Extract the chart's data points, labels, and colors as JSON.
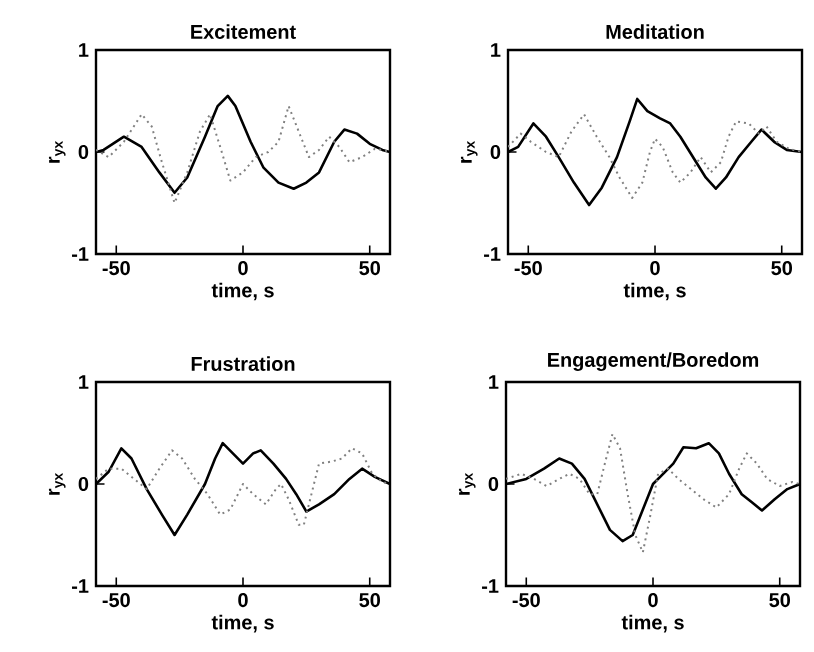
{
  "chart_data": [
    {
      "type": "line",
      "title": "Excitement",
      "xlabel": "time, s",
      "ylabel": "r$_{yx}$",
      "xlim": [
        -58,
        58
      ],
      "ylim": [
        -1,
        1
      ],
      "xticks": [
        -50,
        0,
        50
      ],
      "yticks": [
        -1,
        0,
        1
      ],
      "series": [
        {
          "color": "#000000",
          "line_style": "solid",
          "x": [
            -58,
            -55,
            -47,
            -40,
            -33,
            -27,
            -22,
            -15,
            -10,
            -6,
            -3,
            3,
            8,
            14,
            20,
            25,
            30,
            36,
            40,
            45,
            50,
            55,
            58
          ],
          "values": [
            0,
            0.02,
            0.15,
            0.05,
            -0.2,
            -0.4,
            -0.25,
            0.15,
            0.45,
            0.55,
            0.45,
            0.1,
            -0.15,
            -0.3,
            -0.36,
            -0.3,
            -0.2,
            0.1,
            0.22,
            0.18,
            0.08,
            0.02,
            0
          ]
        },
        {
          "color": "#808080",
          "line_style": "dotted",
          "x": [
            -58,
            -53,
            -47,
            -40,
            -36,
            -32,
            -27,
            -22,
            -17,
            -13,
            -9,
            -5,
            0,
            5,
            10,
            14,
            18,
            22,
            26,
            30,
            34,
            38,
            42,
            47,
            52,
            55,
            58
          ],
          "values": [
            0.02,
            -0.05,
            0.1,
            0.37,
            0.25,
            -0.1,
            -0.5,
            -0.2,
            0.2,
            0.37,
            0.05,
            -0.28,
            -0.2,
            -0.05,
            0,
            0.1,
            0.45,
            0.2,
            -0.05,
            0.02,
            0.15,
            0.05,
            -0.1,
            -0.05,
            0.03,
            0.02,
            0
          ]
        }
      ]
    },
    {
      "type": "line",
      "title": "Meditation",
      "xlabel": "time, s",
      "ylabel": "r$_{yx}$",
      "xlim": [
        -58,
        58
      ],
      "ylim": [
        -1,
        1
      ],
      "xticks": [
        -50,
        0,
        50
      ],
      "yticks": [
        -1,
        0,
        1
      ],
      "series": [
        {
          "color": "#000000",
          "line_style": "solid",
          "x": [
            -58,
            -54,
            -48,
            -43,
            -38,
            -32,
            -26,
            -21,
            -15,
            -10,
            -7,
            -3,
            2,
            6,
            10,
            15,
            20,
            24,
            28,
            33,
            38,
            42,
            47,
            52,
            58
          ],
          "values": [
            0,
            0.05,
            0.28,
            0.15,
            -0.05,
            -0.3,
            -0.52,
            -0.35,
            -0.05,
            0.3,
            0.52,
            0.4,
            0.33,
            0.28,
            0.15,
            -0.05,
            -0.25,
            -0.36,
            -0.25,
            -0.05,
            0.1,
            0.22,
            0.1,
            0.02,
            0
          ]
        },
        {
          "color": "#808080",
          "line_style": "dotted",
          "x": [
            -58,
            -53,
            -49,
            -43,
            -38,
            -33,
            -28,
            -23,
            -18,
            -14,
            -9,
            -5,
            -2,
            0,
            3,
            7,
            10,
            14,
            18,
            22,
            26,
            29,
            32,
            37,
            41,
            44,
            48,
            53,
            58
          ],
          "values": [
            0.05,
            0.18,
            0.1,
            0,
            -0.05,
            0.2,
            0.37,
            0.15,
            -0.05,
            -0.25,
            -0.45,
            -0.3,
            0,
            0.13,
            0.05,
            -0.2,
            -0.3,
            -0.2,
            -0.05,
            -0.2,
            -0.1,
            0.15,
            0.3,
            0.28,
            0.18,
            0.25,
            0.1,
            0.03,
            0
          ]
        }
      ]
    },
    {
      "type": "line",
      "title": "Frustration",
      "xlabel": "time, s",
      "ylabel": "r$_{yx}$",
      "xlim": [
        -58,
        58
      ],
      "ylim": [
        -1,
        1
      ],
      "xticks": [
        -50,
        0,
        50
      ],
      "yticks": [
        -1,
        0,
        1
      ],
      "series": [
        {
          "color": "#000000",
          "line_style": "solid",
          "x": [
            -58,
            -53,
            -48,
            -44,
            -38,
            -32,
            -27,
            -22,
            -15,
            -11,
            -8,
            -4,
            0,
            4,
            7,
            12,
            17,
            21,
            25,
            30,
            36,
            42,
            47,
            52,
            58
          ],
          "values": [
            0,
            0.12,
            0.35,
            0.25,
            -0.05,
            -0.3,
            -0.5,
            -0.3,
            0,
            0.25,
            0.4,
            0.3,
            0.2,
            0.3,
            0.33,
            0.2,
            0.05,
            -0.1,
            -0.27,
            -0.2,
            -0.1,
            0.05,
            0.15,
            0.07,
            0
          ]
        },
        {
          "color": "#808080",
          "line_style": "dotted",
          "x": [
            -58,
            -53,
            -48,
            -43,
            -38,
            -33,
            -28,
            -24,
            -19,
            -14,
            -9,
            -5,
            0,
            4,
            9,
            13,
            15,
            18,
            22,
            24,
            27,
            30,
            35,
            39,
            43,
            47,
            51,
            55,
            58
          ],
          "values": [
            0.05,
            0.15,
            0.15,
            0.05,
            -0.05,
            0.15,
            0.33,
            0.25,
            0.05,
            -0.1,
            -0.3,
            -0.25,
            0,
            -0.1,
            -0.2,
            -0.05,
            0,
            -0.15,
            -0.4,
            -0.4,
            -0.1,
            0.2,
            0.22,
            0.25,
            0.35,
            0.3,
            0.1,
            0.02,
            0
          ]
        }
      ]
    },
    {
      "type": "line",
      "title": "Engagement/Boredom",
      "xlabel": "time, s",
      "ylabel": "r$_{yx}$",
      "xlim": [
        -58,
        58
      ],
      "ylim": [
        -1,
        1
      ],
      "xticks": [
        -50,
        0,
        50
      ],
      "yticks": [
        -1,
        0,
        1
      ],
      "series": [
        {
          "color": "#000000",
          "line_style": "solid",
          "x": [
            -58,
            -50,
            -43,
            -37,
            -32,
            -27,
            -22,
            -17,
            -12,
            -8,
            -4,
            0,
            4,
            8,
            12,
            17,
            22,
            26,
            30,
            35,
            39,
            43,
            48,
            53,
            58
          ],
          "values": [
            0,
            0.05,
            0.15,
            0.25,
            0.2,
            0.05,
            -0.2,
            -0.45,
            -0.56,
            -0.5,
            -0.25,
            0,
            0.1,
            0.2,
            0.36,
            0.35,
            0.4,
            0.3,
            0.1,
            -0.1,
            -0.18,
            -0.26,
            -0.15,
            -0.05,
            0
          ]
        },
        {
          "color": "#808080",
          "line_style": "dotted",
          "x": [
            -58,
            -52,
            -47,
            -42,
            -37,
            -33,
            -29,
            -25,
            -22,
            -19,
            -16,
            -13,
            -10,
            -7,
            -4,
            -1,
            2,
            6,
            10,
            15,
            20,
            25,
            30,
            34,
            37,
            41,
            45,
            50,
            55,
            58
          ],
          "values": [
            0.05,
            0.1,
            0.05,
            -0.02,
            0.05,
            0.1,
            0.05,
            -0.1,
            -0.1,
            0.2,
            0.49,
            0.35,
            -0.1,
            -0.5,
            -0.67,
            -0.3,
            0.1,
            0.15,
            0.05,
            -0.05,
            -0.15,
            -0.23,
            -0.1,
            0.15,
            0.3,
            0.2,
            0.05,
            -0.02,
            0.02,
            0
          ]
        }
      ]
    }
  ]
}
